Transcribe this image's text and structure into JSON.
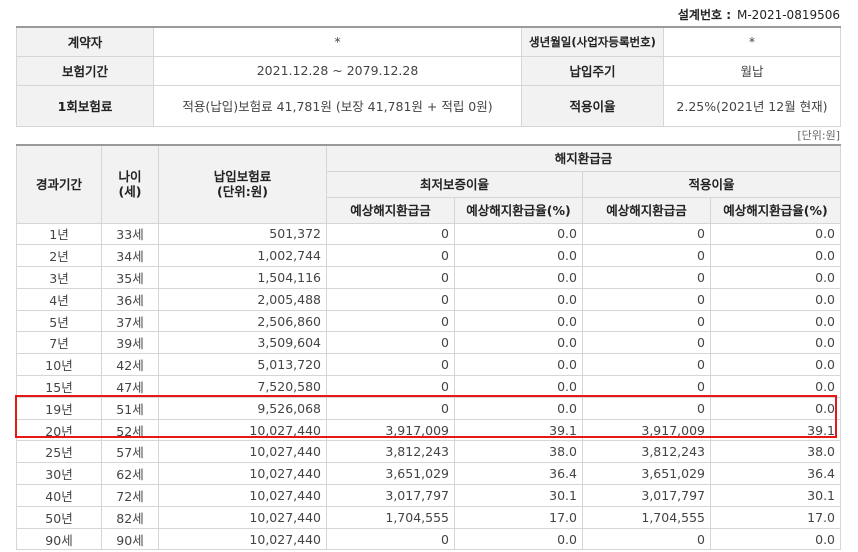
{
  "design_number": {
    "label": "설계번호 :",
    "value": "M-2021-0819506"
  },
  "info": {
    "contractor_label": "계약자",
    "contractor_value": "*",
    "birth_label": "생년월일(사업자등록번호)",
    "birth_value": "*",
    "period_label": "보험기간",
    "period_value": "2021.12.28 ~ 2079.12.28",
    "pay_cycle_label": "납입주기",
    "pay_cycle_value": "월납",
    "premium_label": "1회보험료",
    "premium_value": "적용(납입)보험료 41,781원 (보장 41,781원 + 적립 0원)",
    "rate_label": "적용이율",
    "rate_value": "2.25%(2021년 12월 현재)"
  },
  "unit_note": "[단위:원]",
  "table": {
    "h_elapsed": "경과기간",
    "h_age": "나이\n(세)",
    "h_paid": "납입보험료\n(단위:원)",
    "h_refund": "해지환급금",
    "h_min_rate": "최저보증이율",
    "h_applied_rate": "적용이율",
    "h_expected": "예상해지환급금",
    "h_expected_ratio": "예상해지환급율(%)",
    "rows": [
      [
        "1년",
        "33세",
        "501,372",
        "0",
        "0.0",
        "0",
        "0.0"
      ],
      [
        "2년",
        "34세",
        "1,002,744",
        "0",
        "0.0",
        "0",
        "0.0"
      ],
      [
        "3년",
        "35세",
        "1,504,116",
        "0",
        "0.0",
        "0",
        "0.0"
      ],
      [
        "4년",
        "36세",
        "2,005,488",
        "0",
        "0.0",
        "0",
        "0.0"
      ],
      [
        "5년",
        "37세",
        "2,506,860",
        "0",
        "0.0",
        "0",
        "0.0"
      ],
      [
        "7년",
        "39세",
        "3,509,604",
        "0",
        "0.0",
        "0",
        "0.0"
      ],
      [
        "10년",
        "42세",
        "5,013,720",
        "0",
        "0.0",
        "0",
        "0.0"
      ],
      [
        "15년",
        "47세",
        "7,520,580",
        "0",
        "0.0",
        "0",
        "0.0"
      ],
      [
        "19년",
        "51세",
        "9,526,068",
        "0",
        "0.0",
        "0",
        "0.0"
      ],
      [
        "20년",
        "52세",
        "10,027,440",
        "3,917,009",
        "39.1",
        "3,917,009",
        "39.1"
      ],
      [
        "25년",
        "57세",
        "10,027,440",
        "3,812,243",
        "38.0",
        "3,812,243",
        "38.0"
      ],
      [
        "30년",
        "62세",
        "10,027,440",
        "3,651,029",
        "36.4",
        "3,651,029",
        "36.4"
      ],
      [
        "40년",
        "72세",
        "10,027,440",
        "3,017,797",
        "30.1",
        "3,017,797",
        "30.1"
      ],
      [
        "50년",
        "82세",
        "10,027,440",
        "1,704,555",
        "17.0",
        "1,704,555",
        "17.0"
      ],
      [
        "90세",
        "90세",
        "10,027,440",
        "0",
        "0.0",
        "0",
        "0.0"
      ]
    ]
  },
  "colors": {
    "highlight": "#e51818",
    "header_bg": "#f2f2f2"
  }
}
